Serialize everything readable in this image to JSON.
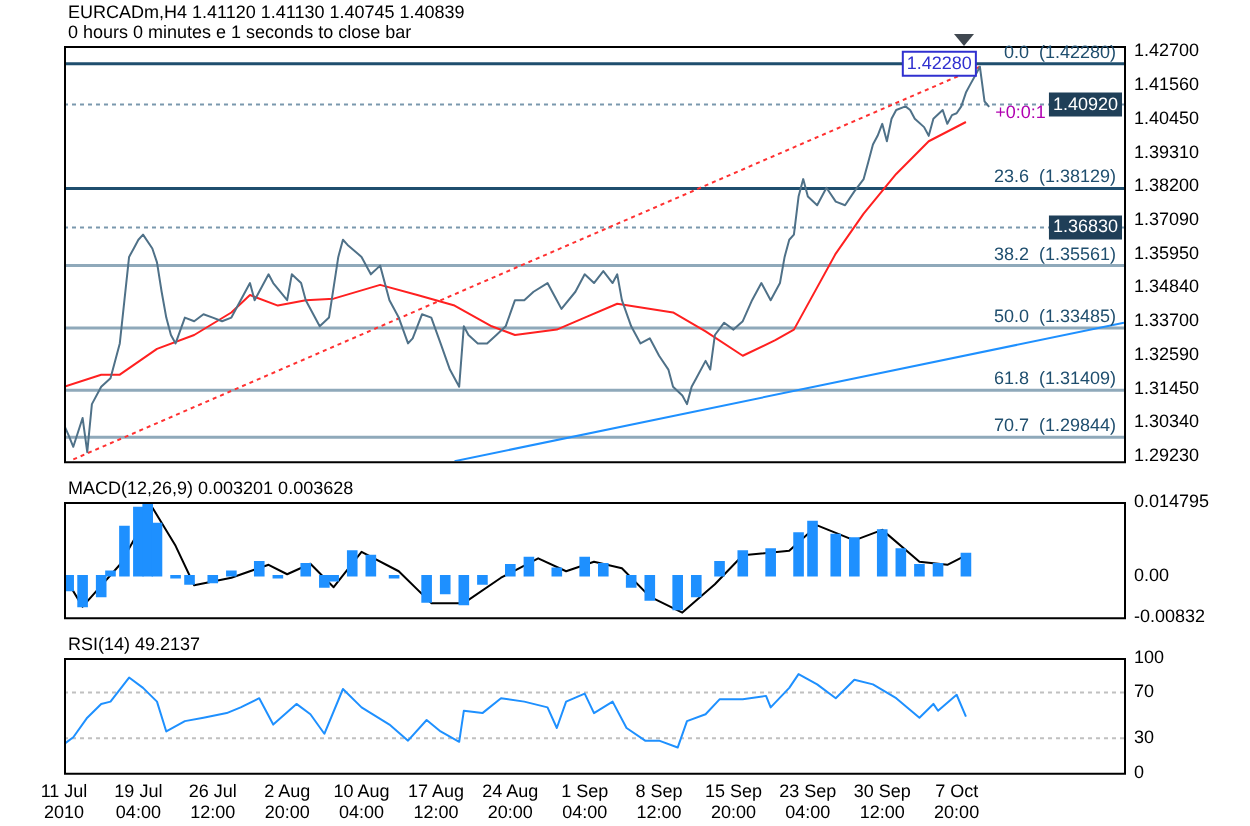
{
  "chart_data": [
    {
      "type": "line",
      "title": "EURCADm,H4  1.41120 1.41130 1.40745 1.40839",
      "subtitle": "0 hours 0 minutes e 1 seconds to close bar",
      "xlim": [
        "2010-07-11T20:00",
        "2010-10-24T08:00"
      ],
      "ylim": [
        1.2905,
        1.4287
      ],
      "tick_labels": "y",
      "grid": false,
      "legend": false,
      "marker": "none",
      "yticks": [
        {
          "value": 1.427,
          "label": "1.42700"
        },
        {
          "value": 1.4156,
          "label": "1.41560"
        },
        {
          "value": 1.4045,
          "label": "1.40450"
        },
        {
          "value": 1.3931,
          "label": "1.39310"
        },
        {
          "value": 1.382,
          "label": "1.38200"
        },
        {
          "value": 1.3709,
          "label": "1.37090"
        },
        {
          "value": 1.3595,
          "label": "1.35950"
        },
        {
          "value": 1.3484,
          "label": "1.34840"
        },
        {
          "value": 1.337,
          "label": "1.33700"
        },
        {
          "value": 1.3259,
          "label": "1.32590"
        },
        {
          "value": 1.3145,
          "label": "1.31450"
        },
        {
          "value": 1.3034,
          "label": "1.30340"
        },
        {
          "value": 1.2923,
          "label": "1.29230"
        }
      ],
      "series": [
        {
          "color": "#4f7188",
          "x": [
            "2010-07-11T20:00",
            "2010-07-12T07:00",
            "2010-07-12T18:00",
            "2010-07-13T16:00",
            "2010-07-14T03:00",
            "2010-07-14T14:00",
            "2010-07-15T12:00",
            "2010-07-16T10:00",
            "2010-07-17T08:00",
            "2010-07-17T19:00",
            "2010-07-18T06:00",
            "2010-07-18T17:00",
            "2010-07-19T04:00",
            "2010-07-19T15:00",
            "2010-07-20T13:00",
            "2010-07-21T00:00",
            "2010-07-21T11:00",
            "2010-07-21T22:00",
            "2010-07-22T09:00",
            "2010-07-22T20:00",
            "2010-07-23T18:00",
            "2010-07-24T16:00",
            "2010-07-25T14:00",
            "2010-07-26T12:00",
            "2010-07-27T10:00",
            "2010-07-28T08:00",
            "2010-07-29T06:00",
            "2010-07-30T04:00",
            "2010-07-30T15:00",
            "2010-08-01T00:00",
            "2010-08-01T11:00",
            "2010-08-02T20:00",
            "2010-08-03T07:00",
            "2010-08-04T05:00",
            "2010-08-04T16:00",
            "2010-08-06T01:00",
            "2010-08-06T23:00",
            "2010-08-07T21:00",
            "2010-08-08T08:00",
            "2010-08-08T19:00",
            "2010-08-10T04:00",
            "2010-08-11T02:00",
            "2010-08-12T00:00",
            "2010-08-12T22:00",
            "2010-08-13T20:00",
            "2010-08-14T18:00",
            "2010-08-15T05:00",
            "2010-08-16T03:00",
            "2010-08-17T01:00",
            "2010-08-17T23:00",
            "2010-08-18T21:00",
            "2010-08-19T19:00",
            "2010-08-20T06:00",
            "2010-08-20T17:00",
            "2010-08-21T15:00",
            "2010-08-22T13:00",
            "2010-08-23T11:00",
            "2010-08-24T09:00",
            "2010-08-25T07:00",
            "2010-08-26T05:00",
            "2010-08-27T03:00",
            "2010-08-28T12:00",
            "2010-08-29T10:00",
            "2010-08-29T21:00",
            "2010-08-31T06:00",
            "2010-09-01T04:00",
            "2010-09-02T02:00",
            "2010-09-03T00:00",
            "2010-09-03T22:00",
            "2010-09-04T09:00",
            "2010-09-04T20:00",
            "2010-09-05T18:00",
            "2010-09-06T16:00",
            "2010-09-07T14:00",
            "2010-09-08T12:00",
            "2010-09-09T10:00",
            "2010-09-09T21:00",
            "2010-09-10T19:00",
            "2010-09-11T06:00",
            "2010-09-11T17:00",
            "2010-09-12T04:00",
            "2010-09-13T02:00",
            "2010-09-13T13:00",
            "2010-09-14T00:00",
            "2010-09-14T22:00",
            "2010-09-15T20:00",
            "2010-09-16T18:00",
            "2010-09-17T16:00",
            "2010-09-18T14:00",
            "2010-09-19T12:00",
            "2010-09-20T10:00",
            "2010-09-20T21:00",
            "2010-09-21T08:00",
            "2010-09-21T19:00",
            "2010-09-22T06:00",
            "2010-09-22T17:00",
            "2010-09-23T04:00",
            "2010-09-24T02:00",
            "2010-09-25T00:00",
            "2010-09-25T22:00",
            "2010-09-26T20:00",
            "2010-09-27T18:00",
            "2010-09-28T16:00",
            "2010-09-29T03:00",
            "2010-09-29T14:00",
            "2010-09-30T01:00",
            "2010-09-30T12:00",
            "2010-09-30T23:00",
            "2010-10-01T10:00",
            "2010-10-01T21:00",
            "2010-10-02T19:00",
            "2010-10-03T06:00",
            "2010-10-03T17:00",
            "2010-10-04T15:00",
            "2010-10-05T02:00",
            "2010-10-05T13:00",
            "2010-10-06T11:00",
            "2010-10-06T22:00",
            "2010-10-07T09:00",
            "2010-10-07T20:00",
            "2010-10-08T07:00",
            "2010-10-08T18:00",
            "2010-10-09T05:00",
            "2010-10-09T16:00",
            "2010-10-10T03:00",
            "2010-10-10T14:00",
            "2010-10-11T01:00"
          ],
          "values": [
            1.3026,
            1.2991,
            1.2953,
            1.3049,
            1.2935,
            1.3095,
            1.3153,
            1.3181,
            1.3297,
            1.3441,
            1.3585,
            1.3613,
            1.3642,
            1.3659,
            1.3613,
            1.3567,
            1.3469,
            1.3383,
            1.3325,
            1.3297,
            1.3383,
            1.3371,
            1.3394,
            1.3383,
            1.3371,
            1.3383,
            1.3441,
            1.3498,
            1.3441,
            1.3527,
            1.3498,
            1.3441,
            1.3527,
            1.3498,
            1.3441,
            1.3354,
            1.3383,
            1.3585,
            1.3642,
            1.3625,
            1.3585,
            1.3527,
            1.3556,
            1.3441,
            1.3383,
            1.3297,
            1.3314,
            1.3394,
            1.3383,
            1.3297,
            1.321,
            1.3153,
            1.3354,
            1.3325,
            1.3297,
            1.3297,
            1.3325,
            1.3354,
            1.3441,
            1.3441,
            1.3469,
            1.3498,
            1.3441,
            1.3412,
            1.3469,
            1.3527,
            1.3498,
            1.3538,
            1.3498,
            1.3527,
            1.3441,
            1.3354,
            1.3297,
            1.3314,
            1.3256,
            1.321,
            1.3153,
            1.3124,
            1.3095,
            1.3153,
            1.3181,
            1.3239,
            1.321,
            1.3325,
            1.3366,
            1.3343,
            1.3371,
            1.3441,
            1.3498,
            1.3441,
            1.3498,
            1.3585,
            1.3642,
            1.3659,
            1.3786,
            1.3844,
            1.3786,
            1.3757,
            1.3815,
            1.3769,
            1.3757,
            1.3803,
            1.3844,
            1.3901,
            1.3959,
            1.3988,
            1.4028,
            1.397,
            1.4045,
            1.4074,
            1.4086,
            1.4074,
            1.4045,
            1.4017,
            1.3988,
            1.4045,
            1.4074,
            1.4028,
            1.4057,
            1.4063,
            1.4086,
            1.4132,
            1.4161,
            1.4189,
            1.4218,
            1.4103,
            1.4084
          ]
        },
        {
          "color": "#ff2020",
          "x": [
            "2010-07-11T20:00",
            "2010-07-15T12:00",
            "2010-07-17T08:00",
            "2010-07-21T00:00",
            "2010-07-24T16:00",
            "2010-07-28T08:00",
            "2010-07-30T04:00",
            "2010-08-01T22:00",
            "2010-08-04T16:00",
            "2010-08-07T10:00",
            "2010-08-12T00:00",
            "2010-08-15T16:00",
            "2010-08-19T08:00",
            "2010-08-23T00:00",
            "2010-08-25T07:00",
            "2010-08-29T10:00",
            "2010-09-01T04:00",
            "2010-09-04T09:00",
            "2010-09-09T21:00",
            "2010-09-13T02:00",
            "2010-09-16T18:00",
            "2010-09-19T23:00",
            "2010-09-21T19:00",
            "2010-09-25T22:00",
            "2010-09-28T16:00",
            "2010-10-01T21:00",
            "2010-10-05T02:00",
            "2010-10-08T18:00"
          ],
          "values": [
            1.3153,
            1.3193,
            1.3193,
            1.3279,
            1.3325,
            1.34,
            1.3458,
            1.3423,
            1.3441,
            1.3446,
            1.3492,
            1.3458,
            1.3423,
            1.3354,
            1.3325,
            1.3343,
            1.3383,
            1.3429,
            1.34,
            1.3337,
            1.3256,
            1.3308,
            1.3343,
            1.3596,
            1.3729,
            1.3861,
            1.397,
            1.4034
          ]
        },
        {
          "color": "#ff3030",
          "line_style": "dotted",
          "x": [
            "2010-07-12T18:00",
            "2010-10-10T03:00"
          ],
          "values": [
            1.2911,
            1.4218
          ]
        },
        {
          "color": "#1e90ff",
          "x": [
            "2010-08-19T08:00",
            "2010-10-24T08:00"
          ],
          "values": [
            1.2905,
            1.3366
          ]
        }
      ],
      "ref_lines": [
        {
          "axis": "y",
          "value": 1.4228,
          "label": "0.0  (1.42280)",
          "color": "#1f4e6e"
        },
        {
          "axis": "y",
          "value": 1.4092,
          "label": "1.40920",
          "color": "#7a98ad",
          "line_style": "dotted"
        },
        {
          "axis": "y",
          "value": 1.38129,
          "label": "23.6  (1.38129)",
          "color": "#1f4e6e"
        },
        {
          "axis": "y",
          "value": 1.3683,
          "label": "1.36830",
          "color": "#7a98ad",
          "line_style": "dotted"
        },
        {
          "axis": "y",
          "value": 1.35561,
          "label": "38.2  (1.35561)",
          "color": "#8fa9ba"
        },
        {
          "axis": "y",
          "value": 1.33485,
          "label": "50.0  (1.33485)",
          "color": "#8fa9ba"
        },
        {
          "axis": "y",
          "value": 1.31409,
          "label": "61.8  (1.31409)",
          "color": "#8fa9ba"
        },
        {
          "axis": "y",
          "value": 1.29844,
          "label": "70.7  (1.29844)",
          "color": "#8fa9ba"
        }
      ],
      "annotations": [
        {
          "text": "1.42280",
          "x": "2010-10-10T03:00",
          "y": 1.4228
        },
        {
          "text": "+0:0:1",
          "x": "2010-10-11T01:00",
          "y": 1.4063
        }
      ]
    },
    {
      "type": "bar",
      "title": "MACD(12,26,9) 0.003201 0.003628",
      "xlim": [
        "2010-07-11T20:00",
        "2010-10-24T08:00"
      ],
      "ylim": [
        -0.00832,
        0.014795
      ],
      "tick_labels": "y",
      "grid": false,
      "legend": false,
      "marker": "none",
      "yticks": [
        {
          "value": 0.014795,
          "label": "0.014795"
        },
        {
          "value": 0,
          "label": "0.00"
        },
        {
          "value": -0.00832,
          "label": "-0.00832"
        }
      ],
      "series": [
        {
          "color": "#1e90ff",
          "x": [
            "2010-07-12T07:00",
            "2010-07-13T16:00",
            "2010-07-15T12:00",
            "2010-07-16T10:00",
            "2010-07-17T19:00",
            "2010-07-19T04:00",
            "2010-07-20T02:00",
            "2010-07-21T00:00",
            "2010-07-22T20:00",
            "2010-07-24T05:00",
            "2010-07-26T12:00",
            "2010-07-28T08:00",
            "2010-07-31T02:00",
            "2010-08-01T22:00",
            "2010-08-04T16:00",
            "2010-08-06T12:00",
            "2010-08-07T10:00",
            "2010-08-09T06:00",
            "2010-08-11T02:00",
            "2010-08-13T09:00",
            "2010-08-16T14:00",
            "2010-08-18T10:00",
            "2010-08-20T06:00",
            "2010-08-22T02:00",
            "2010-08-24T20:00",
            "2010-08-26T16:00",
            "2010-08-29T10:00",
            "2010-09-01T04:00",
            "2010-09-03T00:00",
            "2010-09-05T18:00",
            "2010-09-07T14:00",
            "2010-09-10T08:00",
            "2010-09-12T04:00",
            "2010-09-14T11:00",
            "2010-09-16T18:00",
            "2010-09-19T12:00",
            "2010-09-22T06:00",
            "2010-09-23T15:00",
            "2010-09-25T22:00",
            "2010-09-27T18:00",
            "2010-09-30T12:00",
            "2010-10-02T08:00",
            "2010-10-04T04:00",
            "2010-10-06T00:00",
            "2010-10-08T18:00"
          ],
          "values": [
            -0.003,
            -0.0062,
            -0.0042,
            0.0009,
            0.0099,
            0.0137,
            0.0144,
            0.0105,
            -0.0004,
            -0.0017,
            -0.0014,
            0.0009,
            0.0028,
            -0.0004,
            0.0024,
            -0.0023,
            -0.001,
            0.005,
            0.0041,
            -0.0004,
            -0.0053,
            -0.0036,
            -0.0058,
            -0.0017,
            0.0022,
            0.0037,
            0.0015,
            0.0037,
            0.0024,
            -0.0023,
            -0.0049,
            -0.0068,
            -0.0042,
            0.0028,
            0.005,
            0.0054,
            0.0086,
            0.0109,
            0.0083,
            0.0076,
            0.0092,
            0.0054,
            0.0022,
            0.0024,
            0.0045
          ]
        },
        {
          "type": "line",
          "color": "#000000",
          "x": [
            "2010-07-11T20:00",
            "2010-07-13T16:00",
            "2010-07-17T08:00",
            "2010-07-20T13:00",
            "2010-07-22T20:00",
            "2010-07-24T16:00",
            "2010-07-28T08:00",
            "2010-08-01T00:00",
            "2010-08-02T20:00",
            "2010-08-05T03:00",
            "2010-08-07T10:00",
            "2010-08-10T04:00",
            "2010-08-13T20:00",
            "2010-08-17T01:00",
            "2010-08-20T06:00",
            "2010-08-23T22:00",
            "2010-08-27T14:00",
            "2010-08-30T08:00",
            "2010-09-02T02:00",
            "2010-09-04T20:00",
            "2010-09-07T14:00",
            "2010-09-10T19:00",
            "2010-09-14T00:00",
            "2010-09-16T18:00",
            "2010-09-21T08:00",
            "2010-09-24T02:00",
            "2010-09-27T18:00",
            "2010-09-30T12:00",
            "2010-10-04T04:00",
            "2010-10-06T22:00",
            "2010-10-08T18:00"
          ],
          "values": [
            0,
            -0.0062,
            0.0022,
            0.0137,
            0.006,
            -0.0019,
            -0.0004,
            0.0022,
            0.0003,
            0.0024,
            -0.0023,
            0.0048,
            0.0009,
            -0.0055,
            -0.0055,
            -0.0004,
            0.0035,
            0.0009,
            0.0028,
            0.0015,
            -0.0042,
            -0.0074,
            -0.0017,
            0.0041,
            0.005,
            0.0101,
            0.0071,
            0.0092,
            0.0028,
            0.0022,
            0.0041
          ]
        }
      ]
    },
    {
      "type": "line",
      "title": "RSI(14) 49.2137",
      "xlim": [
        "2010-07-11T20:00",
        "2010-10-24T08:00"
      ],
      "ylim": [
        0,
        100
      ],
      "yticks": [
        0,
        30,
        70,
        100
      ],
      "grid": false,
      "legend": false,
      "marker": "none",
      "xticks": [
        {
          "value": "2010-07-11T20:00",
          "label": "11 Jul 2010"
        },
        {
          "value": "2010-07-19T04:00",
          "label": "19 Jul 04:00"
        },
        {
          "value": "2010-07-26T12:00",
          "label": "26 Jul 12:00"
        },
        {
          "value": "2010-08-02T20:00",
          "label": "2 Aug 20:00"
        },
        {
          "value": "2010-08-10T04:00",
          "label": "10 Aug 04:00"
        },
        {
          "value": "2010-08-17T12:00",
          "label": "17 Aug 12:00"
        },
        {
          "value": "2010-08-24T20:00",
          "label": "24 Aug 20:00"
        },
        {
          "value": "2010-09-01T04:00",
          "label": "1 Sep 04:00"
        },
        {
          "value": "2010-09-08T12:00",
          "label": "8 Sep 12:00"
        },
        {
          "value": "2010-09-15T20:00",
          "label": "15 Sep 20:00"
        },
        {
          "value": "2010-09-23T04:00",
          "label": "23 Sep 04:00"
        },
        {
          "value": "2010-09-30T12:00",
          "label": "30 Sep 12:00"
        },
        {
          "value": "2010-10-07T20:00",
          "label": "7 Oct 20:00"
        }
      ],
      "series": [
        {
          "color": "#1e90ff",
          "x": [
            "2010-07-11T20:00",
            "2010-07-12T18:00",
            "2010-07-14T03:00",
            "2010-07-15T12:00",
            "2010-07-16T10:00",
            "2010-07-18T06:00",
            "2010-07-19T15:00",
            "2010-07-21T00:00",
            "2010-07-21T22:00",
            "2010-07-23T18:00",
            "2010-07-25T14:00",
            "2010-07-27T21:00",
            "2010-07-29T06:00",
            "2010-07-31T02:00",
            "2010-08-01T11:00",
            "2010-08-03T18:00",
            "2010-08-05T03:00",
            "2010-08-06T12:00",
            "2010-08-08T08:00",
            "2010-08-10T04:00",
            "2010-08-12T22:00",
            "2010-08-14T18:00",
            "2010-08-16T14:00",
            "2010-08-17T23:00",
            "2010-08-19T19:00",
            "2010-08-20T06:00",
            "2010-08-22T02:00",
            "2010-08-23T22:00",
            "2010-08-26T05:00",
            "2010-08-28T12:00",
            "2010-08-29T10:00",
            "2010-08-30T08:00",
            "2010-09-01T04:00",
            "2010-09-02T02:00",
            "2010-09-03T22:00",
            "2010-09-05T07:00",
            "2010-09-07T03:00",
            "2010-09-08T12:00",
            "2010-09-10T08:00",
            "2010-09-11T06:00",
            "2010-09-13T02:00",
            "2010-09-14T11:00",
            "2010-09-16T18:00",
            "2010-09-19T01:00",
            "2010-09-19T12:00",
            "2010-09-21T08:00",
            "2010-09-22T06:00",
            "2010-09-24T02:00",
            "2010-09-25T22:00",
            "2010-09-27T18:00",
            "2010-09-29T14:00",
            "2010-10-01T21:00",
            "2010-10-04T04:00",
            "2010-10-05T13:00",
            "2010-10-06T00:00",
            "2010-10-07T20:00",
            "2010-10-08T18:00"
          ],
          "values": [
            25,
            31,
            48,
            60,
            62,
            83,
            74,
            62,
            36,
            45,
            48,
            52,
            57,
            65,
            42,
            60,
            51,
            34,
            73,
            57,
            42,
            28,
            46,
            36,
            27,
            54,
            52,
            65,
            62,
            57,
            39,
            62,
            69,
            52,
            62,
            39,
            28,
            28,
            22,
            45,
            51,
            64,
            64,
            67,
            57,
            74,
            86,
            77,
            65,
            81,
            77,
            65,
            48,
            60,
            54,
            68,
            49
          ]
        }
      ],
      "ref_lines": [
        {
          "axis": "y",
          "value": 70,
          "color": "#c0c0c0",
          "line_style": "dotted"
        },
        {
          "axis": "y",
          "value": 30,
          "color": "#c0c0c0",
          "line_style": "dotted"
        }
      ]
    }
  ]
}
